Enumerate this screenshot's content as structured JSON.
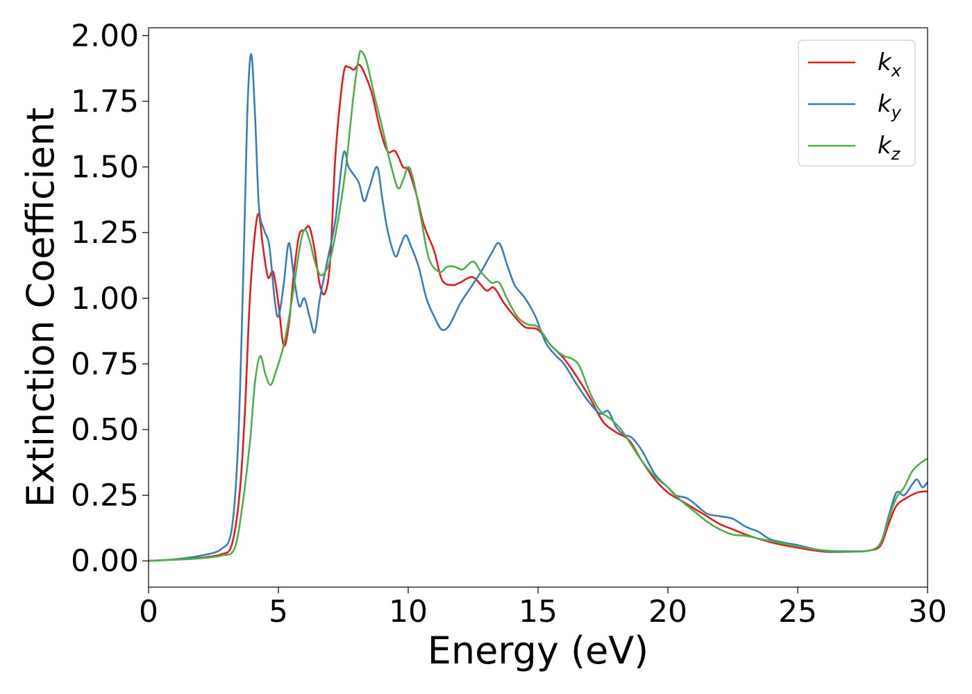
{
  "chart_data": {
    "type": "line",
    "xlabel": "Energy (eV)",
    "ylabel": "Extinction Coefficient",
    "xlim": [
      0,
      30
    ],
    "ylim": [
      -0.1,
      2.03
    ],
    "xticks": [
      "0",
      "5",
      "10",
      "15",
      "20",
      "25",
      "30"
    ],
    "yticks": [
      "0.00",
      "0.25",
      "0.50",
      "0.75",
      "1.00",
      "1.25",
      "1.50",
      "1.75",
      "2.00"
    ],
    "grid": false,
    "legend_position": "top-right",
    "series": [
      {
        "name": "kx",
        "label_base": "k",
        "label_sub": "x",
        "color": "#e41a1c",
        "points": [
          [
            0,
            0.0
          ],
          [
            1,
            0.005
          ],
          [
            2,
            0.012
          ],
          [
            2.8,
            0.025
          ],
          [
            3.2,
            0.06
          ],
          [
            3.5,
            0.25
          ],
          [
            3.7,
            0.55
          ],
          [
            3.9,
            1.0
          ],
          [
            4.1,
            1.25
          ],
          [
            4.25,
            1.32
          ],
          [
            4.4,
            1.2
          ],
          [
            4.6,
            1.08
          ],
          [
            4.8,
            1.1
          ],
          [
            5.0,
            0.98
          ],
          [
            5.2,
            0.82
          ],
          [
            5.4,
            0.9
          ],
          [
            5.6,
            1.1
          ],
          [
            5.8,
            1.24
          ],
          [
            6.0,
            1.26
          ],
          [
            6.2,
            1.27
          ],
          [
            6.4,
            1.18
          ],
          [
            6.6,
            1.05
          ],
          [
            6.8,
            1.02
          ],
          [
            7.0,
            1.15
          ],
          [
            7.2,
            1.55
          ],
          [
            7.5,
            1.85
          ],
          [
            7.7,
            1.88
          ],
          [
            7.9,
            1.87
          ],
          [
            8.1,
            1.89
          ],
          [
            8.3,
            1.86
          ],
          [
            8.6,
            1.78
          ],
          [
            8.9,
            1.65
          ],
          [
            9.2,
            1.56
          ],
          [
            9.5,
            1.56
          ],
          [
            9.8,
            1.5
          ],
          [
            10.0,
            1.49
          ],
          [
            10.3,
            1.4
          ],
          [
            10.6,
            1.28
          ],
          [
            11.0,
            1.18
          ],
          [
            11.3,
            1.07
          ],
          [
            11.7,
            1.05
          ],
          [
            12.0,
            1.06
          ],
          [
            12.5,
            1.08
          ],
          [
            13.0,
            1.03
          ],
          [
            13.3,
            1.04
          ],
          [
            13.7,
            0.98
          ],
          [
            14.1,
            0.93
          ],
          [
            14.5,
            0.89
          ],
          [
            15.0,
            0.88
          ],
          [
            15.5,
            0.82
          ],
          [
            16.0,
            0.77
          ],
          [
            16.5,
            0.7
          ],
          [
            17.0,
            0.62
          ],
          [
            17.5,
            0.53
          ],
          [
            18.0,
            0.49
          ],
          [
            18.5,
            0.46
          ],
          [
            19.0,
            0.38
          ],
          [
            19.5,
            0.31
          ],
          [
            20.0,
            0.26
          ],
          [
            20.5,
            0.23
          ],
          [
            21.0,
            0.2
          ],
          [
            21.5,
            0.17
          ],
          [
            22.0,
            0.14
          ],
          [
            22.5,
            0.12
          ],
          [
            23.0,
            0.1
          ],
          [
            24.0,
            0.07
          ],
          [
            25.0,
            0.05
          ],
          [
            26.0,
            0.035
          ],
          [
            27.0,
            0.035
          ],
          [
            27.8,
            0.04
          ],
          [
            28.2,
            0.06
          ],
          [
            28.5,
            0.14
          ],
          [
            28.8,
            0.21
          ],
          [
            29.2,
            0.24
          ],
          [
            29.6,
            0.26
          ],
          [
            30.0,
            0.265
          ]
        ]
      },
      {
        "name": "ky",
        "label_base": "k",
        "label_sub": "y",
        "color": "#377eb8",
        "points": [
          [
            0,
            0.0
          ],
          [
            1,
            0.006
          ],
          [
            2,
            0.02
          ],
          [
            2.8,
            0.045
          ],
          [
            3.2,
            0.12
          ],
          [
            3.45,
            0.45
          ],
          [
            3.65,
            1.1
          ],
          [
            3.8,
            1.7
          ],
          [
            3.95,
            1.93
          ],
          [
            4.1,
            1.7
          ],
          [
            4.25,
            1.35
          ],
          [
            4.45,
            1.26
          ],
          [
            4.65,
            1.2
          ],
          [
            4.85,
            1.0
          ],
          [
            5.0,
            0.93
          ],
          [
            5.2,
            1.05
          ],
          [
            5.4,
            1.21
          ],
          [
            5.6,
            1.08
          ],
          [
            5.8,
            0.97
          ],
          [
            6.0,
            1.0
          ],
          [
            6.2,
            0.93
          ],
          [
            6.4,
            0.87
          ],
          [
            6.6,
            1.0
          ],
          [
            6.9,
            1.15
          ],
          [
            7.2,
            1.3
          ],
          [
            7.5,
            1.55
          ],
          [
            7.7,
            1.5
          ],
          [
            7.9,
            1.47
          ],
          [
            8.1,
            1.44
          ],
          [
            8.3,
            1.37
          ],
          [
            8.5,
            1.42
          ],
          [
            8.8,
            1.5
          ],
          [
            9.0,
            1.38
          ],
          [
            9.2,
            1.26
          ],
          [
            9.5,
            1.16
          ],
          [
            9.7,
            1.2
          ],
          [
            9.9,
            1.24
          ],
          [
            10.1,
            1.2
          ],
          [
            10.4,
            1.12
          ],
          [
            10.7,
            1.0
          ],
          [
            11.0,
            0.93
          ],
          [
            11.3,
            0.88
          ],
          [
            11.6,
            0.9
          ],
          [
            12.0,
            0.98
          ],
          [
            12.4,
            1.04
          ],
          [
            12.8,
            1.1
          ],
          [
            13.2,
            1.17
          ],
          [
            13.5,
            1.21
          ],
          [
            13.8,
            1.13
          ],
          [
            14.1,
            1.05
          ],
          [
            14.5,
            1.0
          ],
          [
            14.9,
            0.93
          ],
          [
            15.3,
            0.83
          ],
          [
            15.7,
            0.78
          ],
          [
            16.0,
            0.75
          ],
          [
            16.5,
            0.67
          ],
          [
            17.0,
            0.6
          ],
          [
            17.4,
            0.56
          ],
          [
            17.7,
            0.57
          ],
          [
            18.0,
            0.51
          ],
          [
            18.3,
            0.48
          ],
          [
            18.6,
            0.47
          ],
          [
            19.0,
            0.42
          ],
          [
            19.5,
            0.33
          ],
          [
            20.0,
            0.28
          ],
          [
            20.3,
            0.25
          ],
          [
            20.7,
            0.24
          ],
          [
            21.0,
            0.22
          ],
          [
            21.5,
            0.18
          ],
          [
            22.0,
            0.17
          ],
          [
            22.5,
            0.16
          ],
          [
            23.0,
            0.13
          ],
          [
            23.5,
            0.11
          ],
          [
            24.0,
            0.08
          ],
          [
            25.0,
            0.06
          ],
          [
            26.0,
            0.038
          ],
          [
            27.0,
            0.035
          ],
          [
            27.8,
            0.04
          ],
          [
            28.2,
            0.07
          ],
          [
            28.5,
            0.17
          ],
          [
            28.8,
            0.26
          ],
          [
            29.1,
            0.25
          ],
          [
            29.4,
            0.29
          ],
          [
            29.6,
            0.31
          ],
          [
            29.8,
            0.28
          ],
          [
            30.0,
            0.3
          ]
        ]
      },
      {
        "name": "kz",
        "label_base": "k",
        "label_sub": "z",
        "color": "#4daf4a",
        "points": [
          [
            0,
            0.0
          ],
          [
            1,
            0.004
          ],
          [
            2,
            0.01
          ],
          [
            2.8,
            0.02
          ],
          [
            3.3,
            0.045
          ],
          [
            3.6,
            0.2
          ],
          [
            3.9,
            0.45
          ],
          [
            4.1,
            0.68
          ],
          [
            4.3,
            0.78
          ],
          [
            4.5,
            0.71
          ],
          [
            4.7,
            0.67
          ],
          [
            4.9,
            0.72
          ],
          [
            5.2,
            0.82
          ],
          [
            5.5,
            0.98
          ],
          [
            5.8,
            1.18
          ],
          [
            6.0,
            1.26
          ],
          [
            6.2,
            1.22
          ],
          [
            6.4,
            1.14
          ],
          [
            6.6,
            1.09
          ],
          [
            6.8,
            1.1
          ],
          [
            7.0,
            1.15
          ],
          [
            7.3,
            1.3
          ],
          [
            7.6,
            1.5
          ],
          [
            7.9,
            1.78
          ],
          [
            8.1,
            1.92
          ],
          [
            8.2,
            1.94
          ],
          [
            8.4,
            1.9
          ],
          [
            8.7,
            1.77
          ],
          [
            9.0,
            1.65
          ],
          [
            9.3,
            1.52
          ],
          [
            9.6,
            1.42
          ],
          [
            9.8,
            1.45
          ],
          [
            10.0,
            1.5
          ],
          [
            10.2,
            1.45
          ],
          [
            10.5,
            1.3
          ],
          [
            10.8,
            1.15
          ],
          [
            11.2,
            1.1
          ],
          [
            11.5,
            1.12
          ],
          [
            11.8,
            1.12
          ],
          [
            12.1,
            1.11
          ],
          [
            12.5,
            1.14
          ],
          [
            12.8,
            1.1
          ],
          [
            13.2,
            1.06
          ],
          [
            13.5,
            1.06
          ],
          [
            13.8,
            1.0
          ],
          [
            14.2,
            0.93
          ],
          [
            14.6,
            0.9
          ],
          [
            15.0,
            0.89
          ],
          [
            15.5,
            0.82
          ],
          [
            16.0,
            0.78
          ],
          [
            16.3,
            0.77
          ],
          [
            16.6,
            0.74
          ],
          [
            17.0,
            0.64
          ],
          [
            17.4,
            0.57
          ],
          [
            17.8,
            0.54
          ],
          [
            18.2,
            0.5
          ],
          [
            18.6,
            0.44
          ],
          [
            19.0,
            0.38
          ],
          [
            19.5,
            0.32
          ],
          [
            20.0,
            0.28
          ],
          [
            20.5,
            0.23
          ],
          [
            21.0,
            0.19
          ],
          [
            21.5,
            0.15
          ],
          [
            22.0,
            0.12
          ],
          [
            22.5,
            0.1
          ],
          [
            23.0,
            0.095
          ],
          [
            23.5,
            0.085
          ],
          [
            24.0,
            0.075
          ],
          [
            25.0,
            0.055
          ],
          [
            26.0,
            0.04
          ],
          [
            27.0,
            0.037
          ],
          [
            27.8,
            0.04
          ],
          [
            28.2,
            0.07
          ],
          [
            28.5,
            0.16
          ],
          [
            28.8,
            0.24
          ],
          [
            29.1,
            0.28
          ],
          [
            29.4,
            0.34
          ],
          [
            29.7,
            0.37
          ],
          [
            30.0,
            0.39
          ]
        ]
      }
    ]
  }
}
